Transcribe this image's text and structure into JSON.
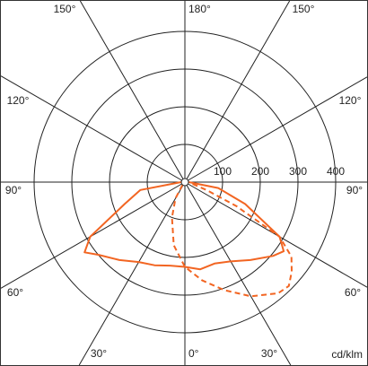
{
  "chart_data": {
    "type": "polar",
    "unit_label": "cd/klm",
    "rlim": [
      0,
      400
    ],
    "rticks": [
      100,
      200,
      300,
      400
    ],
    "theta_ticks": [
      {
        "value": 0,
        "label": "0°"
      },
      {
        "value": 30,
        "label": "30°"
      },
      {
        "value": 60,
        "label": "60°"
      },
      {
        "value": 90,
        "label": "90°"
      },
      {
        "value": 120,
        "label": "120°"
      },
      {
        "value": 150,
        "label": "150°"
      },
      {
        "value": 180,
        "label": "180°"
      }
    ],
    "series": [
      {
        "color": "#f26522",
        "dashed": false,
        "theta": [
          -90,
          -80,
          -70,
          -60,
          -55,
          -50,
          -40,
          -30,
          -20,
          -10,
          0,
          10,
          20,
          30,
          40,
          50,
          55,
          60,
          70,
          80,
          90
        ],
        "values": [
          10,
          120,
          170,
          290,
          325,
          300,
          270,
          245,
          235,
          225,
          225,
          235,
          230,
          243,
          270,
          305,
          320,
          290,
          170,
          90,
          10
        ]
      },
      {
        "color": "#f26522",
        "dashed": true,
        "theta": [
          -40,
          -30,
          -20,
          -10,
          0,
          10,
          20,
          30,
          40,
          45,
          50,
          55,
          60,
          65,
          70,
          80
        ],
        "values": [
          10,
          50,
          100,
          170,
          225,
          265,
          305,
          350,
          385,
          390,
          370,
          345,
          290,
          150,
          60,
          15
        ]
      }
    ]
  }
}
